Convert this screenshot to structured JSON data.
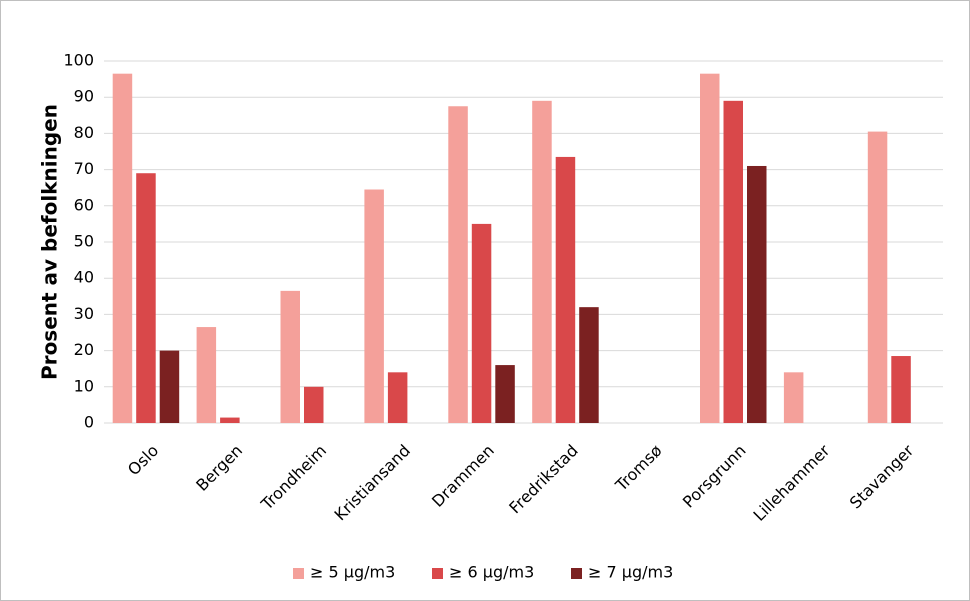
{
  "chart_data": {
    "type": "bar",
    "title": "",
    "xlabel": "",
    "ylabel": "Prosent av befolkningen",
    "ylim": [
      0,
      100
    ],
    "yticks": [
      0,
      10,
      20,
      30,
      40,
      50,
      60,
      70,
      80,
      90,
      100
    ],
    "grid": true,
    "legend_position": "bottom",
    "categories": [
      "Oslo",
      "Bergen",
      "Trondheim",
      "Kristiansand",
      "Drammen",
      "Fredrikstad",
      "Tromsø",
      "Porsgrunn",
      "Lillehammer",
      "Stavanger"
    ],
    "series": [
      {
        "name": "≥ 5 μg/m3",
        "color": "#f4a09a",
        "values": [
          96.5,
          26.5,
          36.5,
          64.5,
          87.5,
          89,
          0,
          96.5,
          14,
          80.5
        ]
      },
      {
        "name": "≥ 6 μg/m3",
        "color": "#d9484a",
        "values": [
          69,
          1.5,
          10,
          14,
          55,
          73.5,
          0,
          89,
          0,
          18.5
        ]
      },
      {
        "name": "≥ 7 μg/m3",
        "color": "#7b2121",
        "values": [
          20,
          0,
          0,
          0,
          16,
          32,
          0,
          71,
          0,
          0
        ]
      }
    ]
  }
}
